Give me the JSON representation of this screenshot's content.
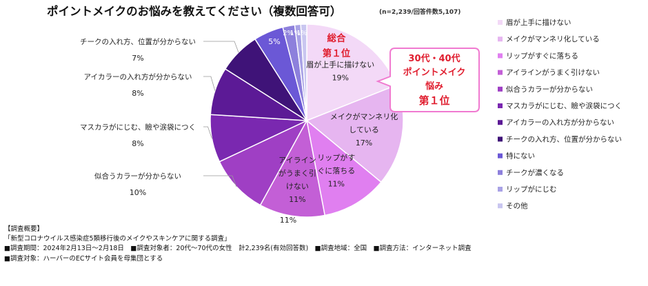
{
  "chart_data": {
    "type": "pie",
    "title": "ポイントメイクのお悩みを教えてください（複数回答可）",
    "subtitle": "(n=2,239/回答件数5,107)",
    "slices": [
      {
        "label": "眉が上手に描けない",
        "value": 19,
        "value_label": "19%",
        "color": "#f3d9f7"
      },
      {
        "label": "メイクがマンネリ化している",
        "value": 17,
        "value_label": "17%",
        "color": "#e6b5f0"
      },
      {
        "label": "リップがすぐに落ちる",
        "value": 11,
        "value_label": "11%",
        "color": "#e07ff0"
      },
      {
        "label": "アイラインがうまく引けない",
        "value": 11,
        "value_label": "11%",
        "color": "#c35fd6"
      },
      {
        "label": "似合うカラーが分からない",
        "value": 10,
        "value_label": "10%",
        "color": "#9f3fc4"
      },
      {
        "label": "マスカラがにじむ、瞼や涙袋につく",
        "value": 8,
        "value_label": "8%",
        "color": "#7a28b0"
      },
      {
        "label": "アイカラーの入れ方が分からない",
        "value": 8,
        "value_label": "8%",
        "color": "#5c1a96"
      },
      {
        "label": "チークの入れ方、位置が分からない",
        "value": 7,
        "value_label": "7%",
        "color": "#3f1378"
      },
      {
        "label": "特にない",
        "value": 5,
        "value_label": "5%",
        "color": "#6b58d6"
      },
      {
        "label": "チークが濃くなる",
        "value": 2,
        "value_label": "2%",
        "color": "#8d80dc"
      },
      {
        "label": "リップがにじむ",
        "value": 1,
        "value_label": "1%",
        "color": "#a9a2e6"
      },
      {
        "label": "その他",
        "value": 1,
        "value_label": "1%",
        "color": "#c9c6f0"
      }
    ],
    "legend_position": "right",
    "slice_inner_labels": [
      {
        "text": "眉が上手に描けない",
        "value": "19%"
      },
      {
        "text": "メイクがマンネリ化している",
        "value": "17%"
      },
      {
        "text": "リップがすぐに落ちる",
        "value": "11%"
      },
      {
        "text": "アイラインがうまく引けない",
        "value": "11%"
      }
    ],
    "outer_labels": [
      {
        "text": "チークの入れ方、位置が分からない",
        "value": "7%"
      },
      {
        "text": "アイカラーの入れ方が分からない",
        "value": "8%"
      },
      {
        "text": "マスカラがにじむ、瞼や涙袋につく",
        "value": "8%"
      },
      {
        "text": "似合うカラーが分からない",
        "value": "10%"
      }
    ],
    "annotation_overall": [
      "総合",
      "第１位"
    ],
    "callout": [
      "30代・40代",
      "ポイントメイク",
      "悩み",
      "第１位"
    ]
  },
  "inner_label_lines": [
    [
      "眉が上手に描けない"
    ],
    [
      "メイクがマンネリ化",
      "している"
    ],
    [
      "リップがす",
      "ぐに落ちる"
    ],
    [
      "アイライン",
      "がうまく引",
      "けない"
    ]
  ],
  "survey": {
    "heading": "【調査概要】",
    "line1": "「新型コロナウイルス感染症5類移行後のメイクやスキンケアに関する調査」",
    "line2": "■調査期間：2024年2月13日～2月18日　■調査対象者：20代～70代の女性　計2,239名(有効回答数)　■調査地域：全国　■調査方法：インターネット調査",
    "line3": "■調査対象：ハーバーのECサイト会員を母集団とする"
  }
}
